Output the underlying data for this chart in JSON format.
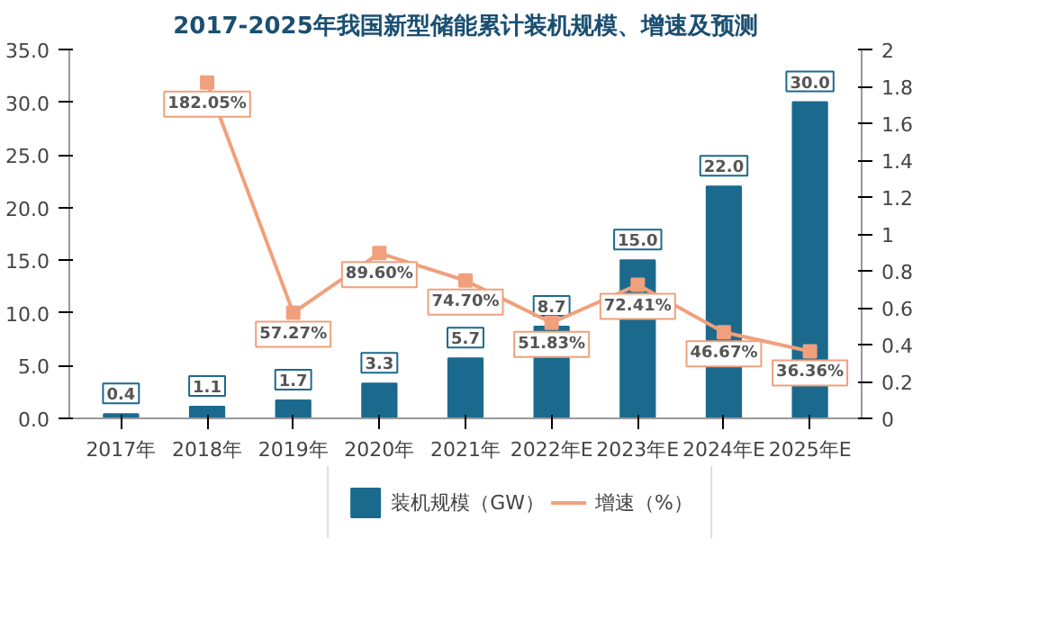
{
  "chart_data": {
    "type": "bar",
    "title": "2017-2025年我国新型储能累计装机规模、增速及预测",
    "categories": [
      "2017年",
      "2018年",
      "2019年",
      "2020年",
      "2021年",
      "2022年E",
      "2023年E",
      "2024年E",
      "2025年E"
    ],
    "series": [
      {
        "name": "装机规模（GW）",
        "color": "#1b6a8e",
        "values": [
          0.4,
          1.1,
          1.7,
          3.3,
          5.7,
          8.7,
          15.0,
          22.0,
          30.0
        ],
        "value_labels": [
          "0.4",
          "1.1",
          "1.7",
          "3.3",
          "5.7",
          "8.7",
          "15.0",
          "22.0",
          "30.0"
        ]
      },
      {
        "name": "增速（%）",
        "type": "line",
        "axis": "y2",
        "color": "#f0a07c",
        "marker": "square",
        "values": [
          null,
          1.8205,
          0.5727,
          0.896,
          0.747,
          0.5183,
          0.7241,
          0.4667,
          0.3636
        ],
        "value_labels": [
          null,
          "182.05%",
          "57.27%",
          "89.60%",
          "74.70%",
          "51.83%",
          "72.41%",
          "46.67%",
          "36.36%"
        ]
      }
    ],
    "ylim": [
      0,
      35
    ],
    "yticks": [
      {
        "value": 0,
        "label": "0.0"
      },
      {
        "value": 5,
        "label": "5.0"
      },
      {
        "value": 10,
        "label": "10.0"
      },
      {
        "value": 15,
        "label": "15.0"
      },
      {
        "value": 20,
        "label": "20.0"
      },
      {
        "value": 25,
        "label": "25.0"
      },
      {
        "value": 30,
        "label": "30.0"
      },
      {
        "value": 35,
        "label": "35.0"
      }
    ],
    "y2lim": [
      0,
      2
    ],
    "y2ticks": [
      0,
      0.2,
      0.4,
      0.6,
      0.8,
      1,
      1.2,
      1.4,
      1.6,
      1.8,
      2
    ],
    "grid": false,
    "legend": "bottom"
  }
}
